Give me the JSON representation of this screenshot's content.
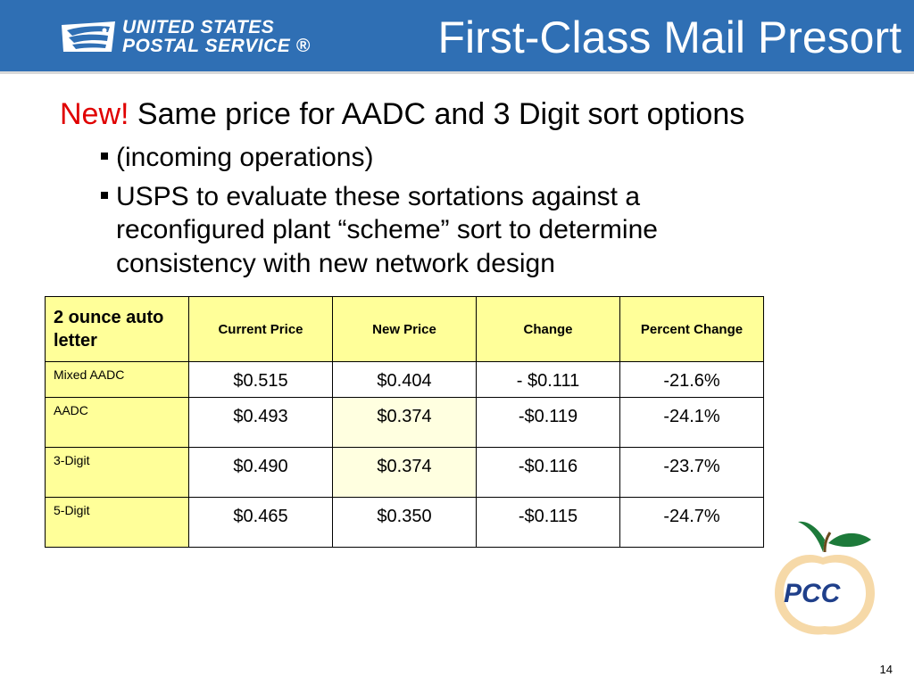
{
  "header": {
    "logo_line1": "UNITED STATES",
    "logo_line2": "POSTAL SERVICE ®",
    "title": "First-Class Mail Presort",
    "band_color": "#2f6fb4"
  },
  "headline": {
    "new_label": "New!",
    "text": " Same price for AADC and 3 Digit sort options"
  },
  "bullets": [
    "(incoming operations)",
    "USPS to evaluate these sortations against a reconfigured plant “scheme” sort to determine consistency with new network design"
  ],
  "table": {
    "corner": "2 ounce auto letter",
    "columns": [
      "Current Price",
      "New Price",
      "Change",
      "Percent Change"
    ],
    "rows": [
      {
        "label": "Mixed AADC",
        "current": "$0.515",
        "new": "$0.404",
        "change": "- $0.111",
        "percent": "-21.6%"
      },
      {
        "label": "AADC",
        "current": "$0.493",
        "new": "$0.374",
        "change": "-$0.119",
        "percent": "-24.1%"
      },
      {
        "label": "3-Digit",
        "current": "$0.490",
        "new": "$0.374",
        "change": "-$0.116",
        "percent": "-23.7%"
      },
      {
        "label": "5-Digit",
        "current": "$0.465",
        "new": "$0.350",
        "change": "-$0.115",
        "percent": "-24.7%"
      }
    ],
    "header_fill": "#ffff99",
    "highlight_fill": "#ffffe0"
  },
  "pcc_logo": {
    "lettering": "PCC",
    "icon": "peach-pcc-logo"
  },
  "page_number": "14"
}
